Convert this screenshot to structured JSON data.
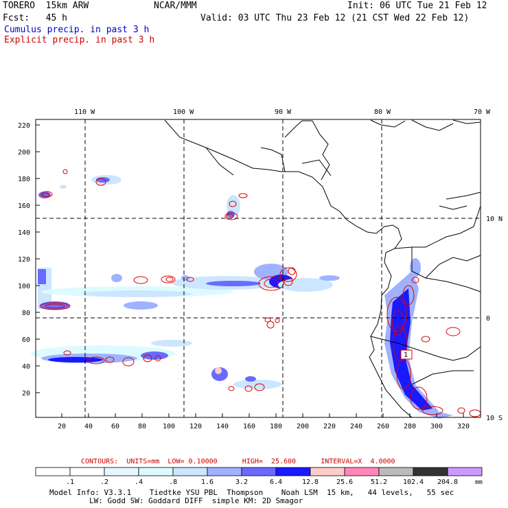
{
  "header": {
    "model_line": "TORERO  15km ARW",
    "org": "NCAR/MMM",
    "init": "Init: 06 UTC Tue 21 Feb 12",
    "fcst": "Fcst:   45 h",
    "valid": "Valid: 03 UTC Thu 23 Feb 12 (21 CST Wed 22 Feb 12)",
    "cumulus": "Cumulus precip. in past 3 h",
    "explicit": "Explicit precip. in past 3 h"
  },
  "map": {
    "lon_labels": [
      "110 W",
      "100 W",
      "90 W",
      "80 W",
      "70 W"
    ],
    "lat_labels": [
      "10 N",
      "0",
      "10 S"
    ],
    "y_ticks": [
      "220",
      "200",
      "180",
      "160",
      "140",
      "120",
      "100",
      "80",
      "60",
      "40",
      "20"
    ],
    "x_ticks": [
      "20",
      "40",
      "60",
      "80",
      "100",
      "120",
      "140",
      "160",
      "180",
      "200",
      "220",
      "240",
      "260",
      "280",
      "300",
      "320"
    ],
    "label_1": "1"
  },
  "contours_text": "CONTOURS:  UNITS=mm  LOW= 0.10000      HIGH=  25.600      INTERVAL=X  4.0000",
  "colorbar": {
    "labels": [
      ".1",
      ".2",
      ".4",
      ".8",
      "1.6",
      "3.2",
      "6.4",
      "12.8",
      "25.6",
      "51.2",
      "102.4",
      "204.8"
    ],
    "unit": "mm",
    "colors": [
      "#ffffff",
      "#ffffff",
      "#e8f7ff",
      "#ddfbff",
      "#cce6ff",
      "#9fb2ff",
      "#6a6aff",
      "#1a1aff",
      "#ffcccc",
      "#ff88bb",
      "#bbbbbb",
      "#333333",
      "#cc99ff"
    ]
  },
  "model_info": {
    "line1": "Model Info: V3.3.1    Tiedtke YSU PBL  Thompson    Noah LSM  15 km,   44 levels,   55 sec",
    "line2": "LW: Godd SW: Goddard DIFF  simple KM: 2D Smagor"
  }
}
